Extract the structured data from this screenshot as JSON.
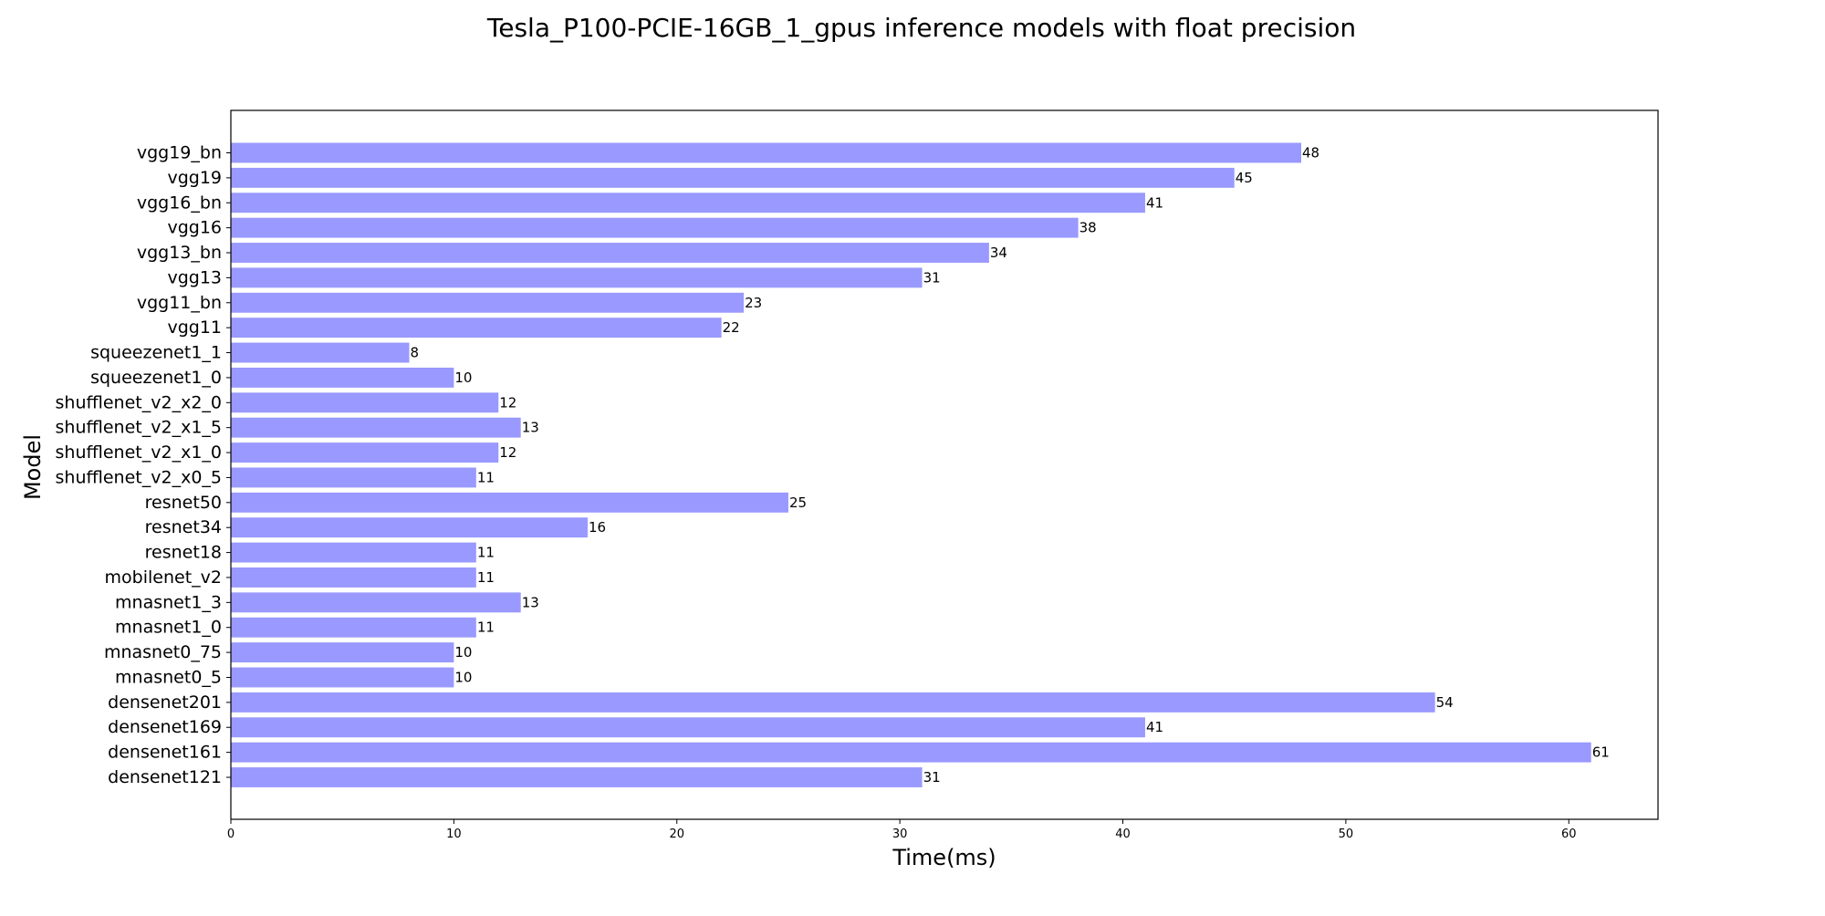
{
  "chart_data": {
    "type": "bar",
    "orientation": "horizontal",
    "title": "Tesla_P100-PCIE-16GB_1_gpus inference models with float precision",
    "xlabel": "Time(ms)",
    "ylabel": "Model",
    "xlim": [
      0,
      64
    ],
    "x_ticks": [
      0,
      10,
      20,
      30,
      40,
      50,
      60
    ],
    "grid": false,
    "bar_color": "#9999ff",
    "categories": [
      "densenet121",
      "densenet161",
      "densenet169",
      "densenet201",
      "mnasnet0_5",
      "mnasnet0_75",
      "mnasnet1_0",
      "mnasnet1_3",
      "mobilenet_v2",
      "resnet18",
      "resnet34",
      "resnet50",
      "shufflenet_v2_x0_5",
      "shufflenet_v2_x1_0",
      "shufflenet_v2_x1_5",
      "shufflenet_v2_x2_0",
      "squeezenet1_0",
      "squeezenet1_1",
      "vgg11",
      "vgg11_bn",
      "vgg13",
      "vgg13_bn",
      "vgg16",
      "vgg16_bn",
      "vgg19",
      "vgg19_bn"
    ],
    "values": [
      31,
      61,
      41,
      54,
      10,
      10,
      11,
      13,
      11,
      11,
      16,
      25,
      11,
      12,
      13,
      12,
      10,
      8,
      22,
      23,
      31,
      34,
      38,
      41,
      45,
      48
    ],
    "data_labels": [
      "31",
      "61",
      "41",
      "54",
      "10",
      "10",
      "11",
      "13",
      "11",
      "11",
      "16",
      "25",
      "11",
      "12",
      "13",
      "12",
      "10",
      "8",
      "22",
      "23",
      "31",
      "34",
      "38",
      "41",
      "45",
      "48"
    ]
  }
}
